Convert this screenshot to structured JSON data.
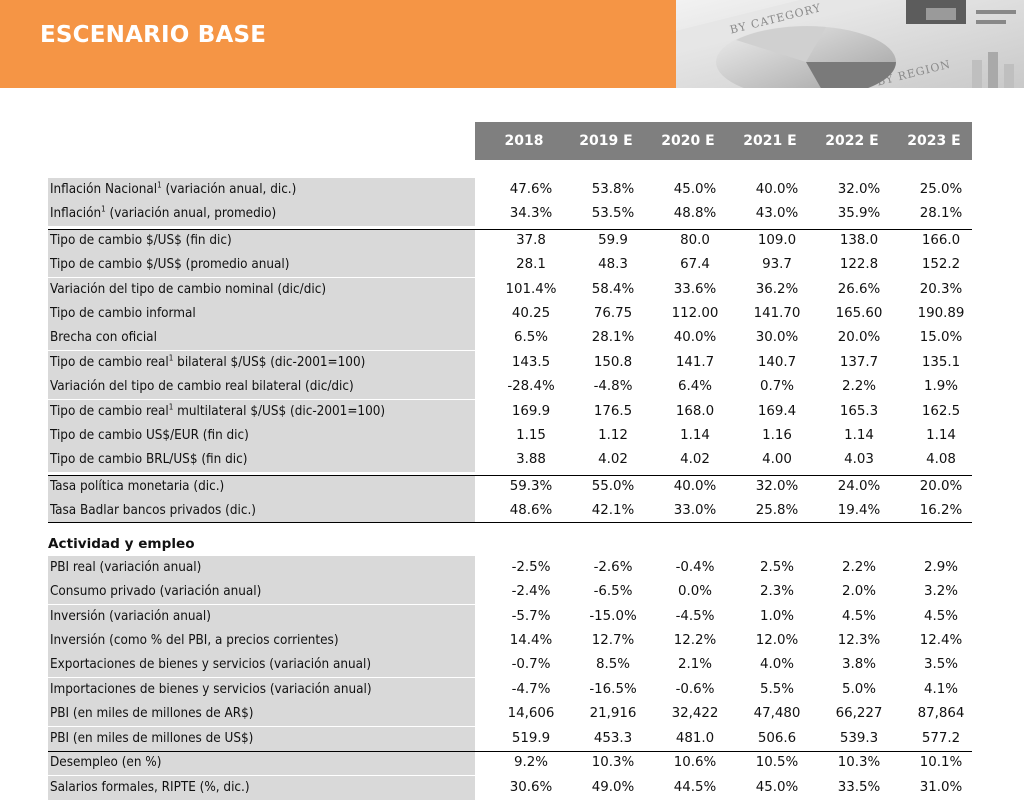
{
  "title": "ESCENARIO BASE",
  "header_years": [
    "2018",
    "2019 E",
    "2020 E",
    "2021 E",
    "2022 E",
    "2023 E"
  ],
  "decor_words": [
    "BY CATEGORY",
    "BY REGION"
  ],
  "section_title": "Actividad y empleo",
  "rows": [
    {
      "label": "Inflación Nacional",
      "sup": "1",
      "suffix": " (variación anual, dic.)",
      "values": [
        "47.6%",
        "53.8%",
        "45.0%",
        "40.0%",
        "32.0%",
        "25.0%"
      ]
    },
    {
      "label": "Inflación",
      "sup": "1",
      "suffix": " (variación anual, promedio)",
      "values": [
        "34.3%",
        "53.5%",
        "48.8%",
        "43.0%",
        "35.9%",
        "28.1%"
      ]
    },
    {
      "label": "Tipo de cambio $/US$ (fin dic)",
      "sup": "",
      "suffix": "",
      "values": [
        "37.8",
        "59.9",
        "80.0",
        "109.0",
        "138.0",
        "166.0"
      ]
    },
    {
      "label": "Tipo de cambio $/US$ (promedio anual)",
      "sup": "",
      "suffix": "",
      "values": [
        "28.1",
        "48.3",
        "67.4",
        "93.7",
        "122.8",
        "152.2"
      ]
    },
    {
      "label": "Variación del tipo de cambio nominal (dic/dic)",
      "sup": "",
      "suffix": "",
      "values": [
        "101.4%",
        "58.4%",
        "33.6%",
        "36.2%",
        "26.6%",
        "20.3%"
      ]
    },
    {
      "label": "Tipo de cambio informal",
      "sup": "",
      "suffix": "",
      "values": [
        "40.25",
        "76.75",
        "112.00",
        "141.70",
        "165.60",
        "190.89"
      ]
    },
    {
      "label": "Brecha con oficial",
      "sup": "",
      "suffix": "",
      "values": [
        "6.5%",
        "28.1%",
        "40.0%",
        "30.0%",
        "20.0%",
        "15.0%"
      ]
    },
    {
      "label": "Tipo de cambio real",
      "sup": "1",
      "suffix": " bilateral $/US$ (dic-2001=100)",
      "values": [
        "143.5",
        "150.8",
        "141.7",
        "140.7",
        "137.7",
        "135.1"
      ]
    },
    {
      "label": "Variación del tipo de cambio real bilateral (dic/dic)",
      "sup": "",
      "suffix": "",
      "values": [
        "-28.4%",
        "-4.8%",
        "6.4%",
        "0.7%",
        "2.2%",
        "1.9%"
      ]
    },
    {
      "label": "Tipo de cambio real",
      "sup": "1",
      "suffix": " multilateral $/US$ (dic-2001=100)",
      "values": [
        "169.9",
        "176.5",
        "168.0",
        "169.4",
        "165.3",
        "162.5"
      ]
    },
    {
      "label": "Tipo de cambio US$/EUR (fin dic)",
      "sup": "",
      "suffix": "",
      "values": [
        "1.15",
        "1.12",
        "1.14",
        "1.16",
        "1.14",
        "1.14"
      ]
    },
    {
      "label": "Tipo de cambio BRL/US$ (fin dic)",
      "sup": "",
      "suffix": "",
      "values": [
        "3.88",
        "4.02",
        "4.02",
        "4.00",
        "4.03",
        "4.08"
      ]
    },
    {
      "label": "Tasa política monetaria (dic.)",
      "sup": "",
      "suffix": "",
      "values": [
        "59.3%",
        "55.0%",
        "40.0%",
        "32.0%",
        "24.0%",
        "20.0%"
      ]
    },
    {
      "label": "Tasa Badlar bancos privados (dic.)",
      "sup": "",
      "suffix": "",
      "values": [
        "48.6%",
        "42.1%",
        "33.0%",
        "25.8%",
        "19.4%",
        "16.2%"
      ]
    },
    {
      "label": "PBI real (variación anual)",
      "sup": "",
      "suffix": "",
      "values": [
        "-2.5%",
        "-2.6%",
        "-0.4%",
        "2.5%",
        "2.2%",
        "2.9%"
      ]
    },
    {
      "label": "Consumo privado (variación anual)",
      "sup": "",
      "suffix": "",
      "values": [
        "-2.4%",
        "-6.5%",
        "0.0%",
        "2.3%",
        "2.0%",
        "3.2%"
      ]
    },
    {
      "label": "Inversión (variación anual)",
      "sup": "",
      "suffix": "",
      "values": [
        "-5.7%",
        "-15.0%",
        "-4.5%",
        "1.0%",
        "4.5%",
        "4.5%"
      ]
    },
    {
      "label": "Inversión (como % del PBI, a precios corrientes)",
      "sup": "",
      "suffix": "",
      "values": [
        "14.4%",
        "12.7%",
        "12.2%",
        "12.0%",
        "12.3%",
        "12.4%"
      ]
    },
    {
      "label": "Exportaciones de bienes y servicios (variación anual)",
      "sup": "",
      "suffix": "",
      "values": [
        "-0.7%",
        "8.5%",
        "2.1%",
        "4.0%",
        "3.8%",
        "3.5%"
      ]
    },
    {
      "label": "Importaciones de bienes y servicios (variación anual)",
      "sup": "",
      "suffix": "",
      "values": [
        "-4.7%",
        "-16.5%",
        "-0.6%",
        "5.5%",
        "5.0%",
        "4.1%"
      ]
    },
    {
      "label": "PBI (en miles de millones de AR$)",
      "sup": "",
      "suffix": "",
      "values": [
        "14,606",
        "21,916",
        "32,422",
        "47,480",
        "66,227",
        "87,864"
      ]
    },
    {
      "label": "PBI (en miles de millones de US$)",
      "sup": "",
      "suffix": "",
      "values": [
        "519.9",
        "453.3",
        "481.0",
        "506.6",
        "539.3",
        "577.2"
      ]
    },
    {
      "label": "Desempleo (en %)",
      "sup": "",
      "suffix": "",
      "values": [
        "9.2%",
        "10.3%",
        "10.6%",
        "10.5%",
        "10.3%",
        "10.1%"
      ]
    },
    {
      "label": "Salarios formales, RIPTE (%, dic.)",
      "sup": "",
      "suffix": "",
      "values": [
        "30.6%",
        "49.0%",
        "44.5%",
        "45.0%",
        "33.5%",
        "31.0%"
      ]
    }
  ]
}
